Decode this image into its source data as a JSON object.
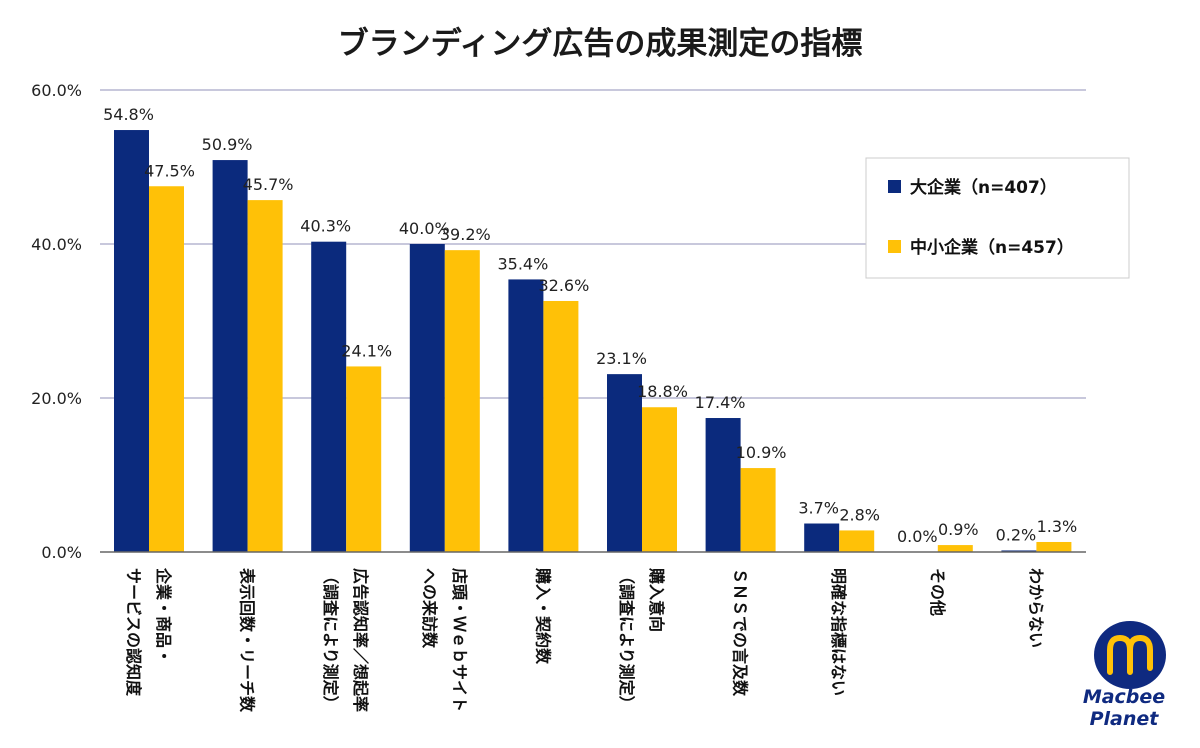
{
  "chart_data": {
    "type": "bar",
    "title": "ブランディング広告の成果測定の指標",
    "categories": [
      [
        "企業・商品・",
        "サービスの認知度"
      ],
      [
        "表示回数・リーチ数"
      ],
      [
        "広告認知率／想起率",
        "（調査により測定）"
      ],
      [
        "店頭・Ｗｅｂサイト",
        "への来訪数"
      ],
      [
        "購入・契約数"
      ],
      [
        "購入意向",
        "（調査により測定）"
      ],
      [
        "ＳＮＳでの言及数"
      ],
      [
        "明確な指標はない"
      ],
      [
        "その他"
      ],
      [
        "わからない"
      ]
    ],
    "series": [
      {
        "name": "大企業（n=407）",
        "color": "#0b2a7d",
        "values": [
          54.8,
          50.9,
          40.3,
          40.0,
          35.4,
          23.1,
          17.4,
          3.7,
          0.0,
          0.2
        ],
        "labels": [
          "54.8%",
          "50.9%",
          "40.3%",
          "40.0%",
          "35.4%",
          "23.1%",
          "17.4%",
          "3.7%",
          "0.0%",
          "0.2%"
        ]
      },
      {
        "name": "中小企業（n=457）",
        "color": "#ffc107",
        "values": [
          47.5,
          45.7,
          24.1,
          39.2,
          32.6,
          18.8,
          10.9,
          2.8,
          0.9,
          1.3
        ],
        "labels": [
          "47.5%",
          "45.7%",
          "24.1%",
          "39.2%",
          "32.6%",
          "18.8%",
          "10.9%",
          "2.8%",
          "0.9%",
          "1.3%"
        ]
      }
    ],
    "ylim": [
      0,
      60
    ],
    "yticks": [
      "0.0%",
      "20.0%",
      "40.0%",
      "60.0%"
    ],
    "ytick_values": [
      0,
      20,
      40,
      60
    ],
    "grid": true,
    "legend": "top-right",
    "gridline_color": "#a8a8c8",
    "axis_color": "#666666"
  },
  "logo": {
    "name": "macbee-planet-logo",
    "lines": [
      "Macbee",
      "Planet"
    ],
    "colors": {
      "blue": "#0f2a80",
      "yellow": "#ffc107"
    }
  }
}
